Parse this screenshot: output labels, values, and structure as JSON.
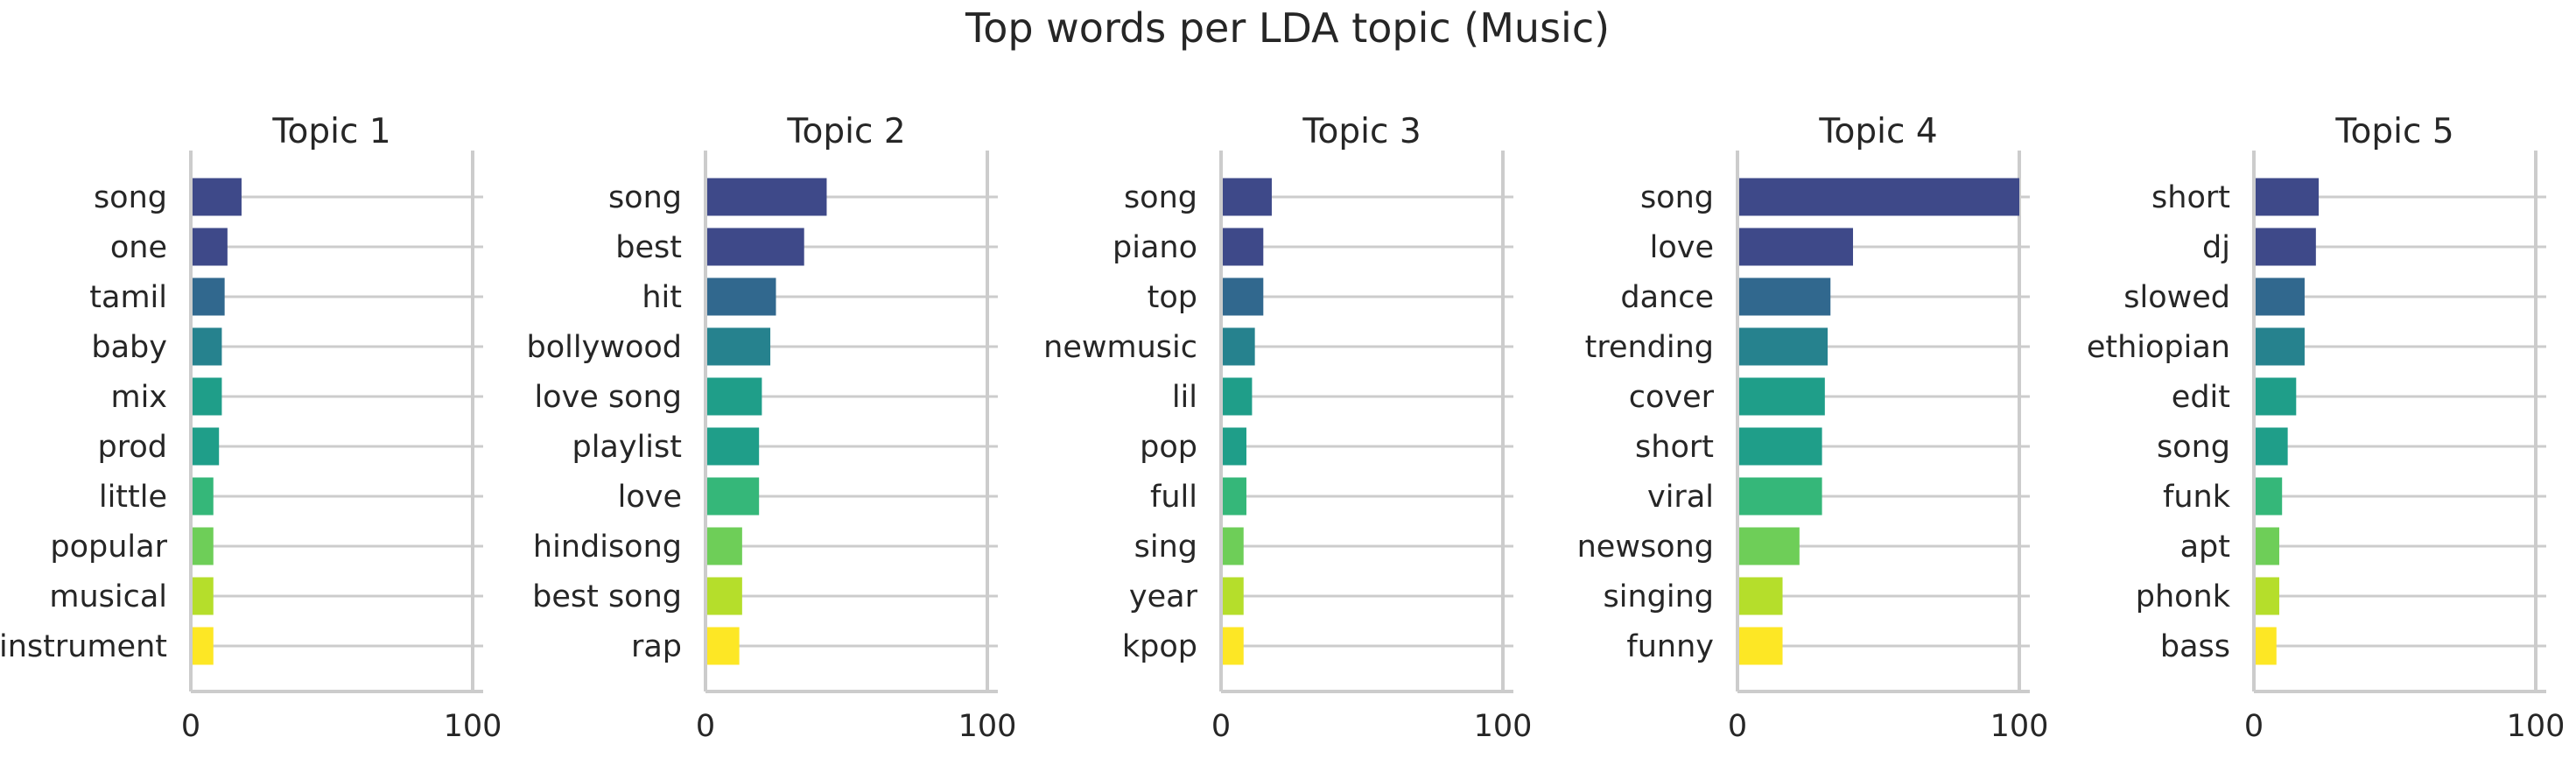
{
  "chart_data": {
    "type": "bar",
    "orientation": "horizontal",
    "title": "Top words per LDA topic (Music)",
    "xlim": [
      0,
      100
    ],
    "xticks": [
      0,
      100
    ],
    "grid": true,
    "palette": [
      "#3e4989",
      "#3e4989",
      "#31688e",
      "#26828e",
      "#1f9e89",
      "#1f9e89",
      "#35b779",
      "#6ece58",
      "#b5de2b",
      "#fde725"
    ],
    "panels": [
      {
        "title": "Topic 1",
        "categories": [
          "song",
          "one",
          "tamil",
          "baby",
          "mix",
          "prod",
          "little",
          "popular",
          "musical",
          "instrument"
        ],
        "values": [
          18,
          13,
          12,
          11,
          11,
          10,
          8,
          8,
          8,
          8
        ]
      },
      {
        "title": "Topic 2",
        "categories": [
          "song",
          "best",
          "hit",
          "bollywood",
          "love song",
          "playlist",
          "love",
          "hindisong",
          "best song",
          "rap"
        ],
        "values": [
          43,
          35,
          25,
          23,
          20,
          19,
          19,
          13,
          13,
          12
        ]
      },
      {
        "title": "Topic 3",
        "categories": [
          "song",
          "piano",
          "top",
          "newmusic",
          "lil",
          "pop",
          "full",
          "sing",
          "year",
          "kpop"
        ],
        "values": [
          18,
          15,
          15,
          12,
          11,
          9,
          9,
          8,
          8,
          8
        ]
      },
      {
        "title": "Topic 4",
        "categories": [
          "song",
          "love",
          "dance",
          "trending",
          "cover",
          "short",
          "viral",
          "newsong",
          "singing",
          "funny"
        ],
        "values": [
          100,
          41,
          33,
          32,
          31,
          30,
          30,
          22,
          16,
          16
        ]
      },
      {
        "title": "Topic 5",
        "categories": [
          "short",
          "dj",
          "slowed",
          "ethiopian",
          "edit",
          "song",
          "funk",
          "apt",
          "phonk",
          "bass"
        ],
        "values": [
          23,
          22,
          18,
          18,
          15,
          12,
          10,
          9,
          9,
          8
        ]
      }
    ]
  }
}
